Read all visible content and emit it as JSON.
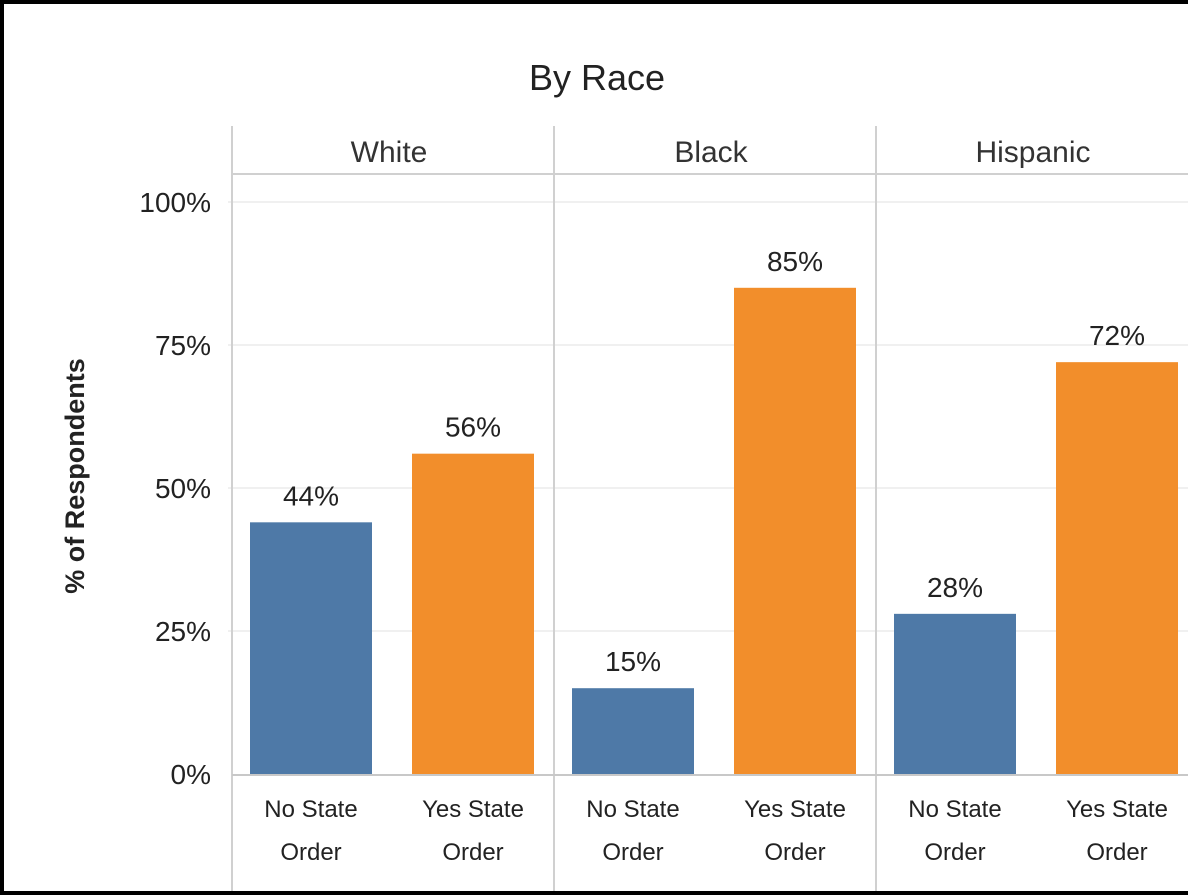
{
  "chart_data": {
    "type": "bar",
    "title": "By Race",
    "ylabel": "% of Respondents",
    "xlabel": "",
    "ylim": [
      0,
      100
    ],
    "y_ticks": [
      "0%",
      "25%",
      "50%",
      "75%",
      "100%"
    ],
    "y_tick_values": [
      0,
      25,
      50,
      75,
      100
    ],
    "grid": true,
    "panels": [
      {
        "name": "White",
        "categories": [
          "No State Order",
          "Yes State Order"
        ],
        "category_lines": [
          [
            "No State",
            "Order"
          ],
          [
            "Yes State",
            "Order"
          ]
        ],
        "values": [
          44,
          56
        ],
        "labels": [
          "44%",
          "56%"
        ]
      },
      {
        "name": "Black",
        "categories": [
          "No State Order",
          "Yes State Order"
        ],
        "category_lines": [
          [
            "No State",
            "Order"
          ],
          [
            "Yes State",
            "Order"
          ]
        ],
        "values": [
          15,
          85
        ],
        "labels": [
          "15%",
          "85%"
        ]
      },
      {
        "name": "Hispanic",
        "categories": [
          "No State Order",
          "Yes State Order"
        ],
        "category_lines": [
          [
            "No State",
            "Order"
          ],
          [
            "Yes State",
            "Order"
          ]
        ],
        "values": [
          28,
          72
        ],
        "labels": [
          "28%",
          "72%"
        ]
      }
    ],
    "colors": {
      "No State Order": "#4e79a7",
      "Yes State Order": "#f28e2b"
    }
  }
}
